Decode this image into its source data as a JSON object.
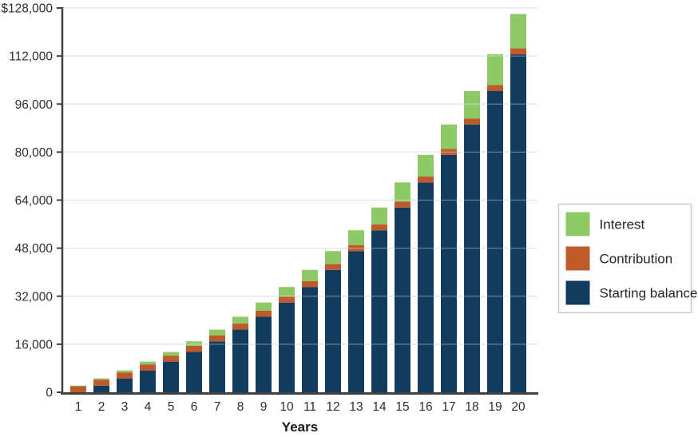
{
  "chart_data": {
    "type": "bar",
    "stacked": true,
    "title": "",
    "xlabel": "Years",
    "ylabel": "",
    "categories": [
      1,
      2,
      3,
      4,
      5,
      6,
      7,
      8,
      9,
      10,
      11,
      12,
      13,
      14,
      15,
      16,
      17,
      18,
      19,
      20
    ],
    "series": [
      {
        "name": "Starting balance",
        "color": "#123b5d",
        "values": [
          0,
          2200,
          4620,
          7282,
          10210,
          13431,
          16974,
          20872,
          25159,
          29875,
          35062,
          40769,
          47045,
          53950,
          61545,
          69899,
          79089,
          89198,
          100318,
          112550
        ]
      },
      {
        "name": "Contribution",
        "color": "#bf5a2b",
        "values": [
          2000,
          2000,
          2000,
          2000,
          2000,
          2000,
          2000,
          2000,
          2000,
          2000,
          2000,
          2000,
          2000,
          2000,
          2000,
          2000,
          2000,
          2000,
          2000,
          2000
        ]
      },
      {
        "name": "Interest",
        "color": "#8ec968",
        "values": [
          200,
          420,
          662,
          928,
          1221,
          1543,
          1897,
          2287,
          2716,
          3187,
          3706,
          4277,
          4905,
          5595,
          6354,
          7190,
          8109,
          9120,
          10232,
          11455
        ]
      }
    ],
    "bar_totals": [
      2200,
      4620,
      7282,
      10210,
      13431,
      16974,
      20872,
      25159,
      29875,
      35062,
      40769,
      47045,
      53950,
      61545,
      69899,
      79089,
      89198,
      100318,
      112550,
      126005
    ],
    "y_axis": {
      "min": 0,
      "max": 128000,
      "tick_step": 16000,
      "tick_labels_top_to_bottom": [
        "$128,000",
        "112,000",
        "96,000",
        "80,000",
        "64,000",
        "48,000",
        "32,000",
        "16,000",
        "0"
      ]
    },
    "grid": "horizontal",
    "legend": {
      "position": "right",
      "order_top_to_bottom": [
        "Interest",
        "Contribution",
        "Starting balance"
      ]
    }
  },
  "colors": {
    "starting_balance": "#123b5d",
    "contribution": "#bf5a2b",
    "interest": "#8ec968",
    "gridline": "#d9d9d9",
    "axis": "#404040",
    "text": "#2e2e2e",
    "legend_border": "#c9c9c9"
  }
}
